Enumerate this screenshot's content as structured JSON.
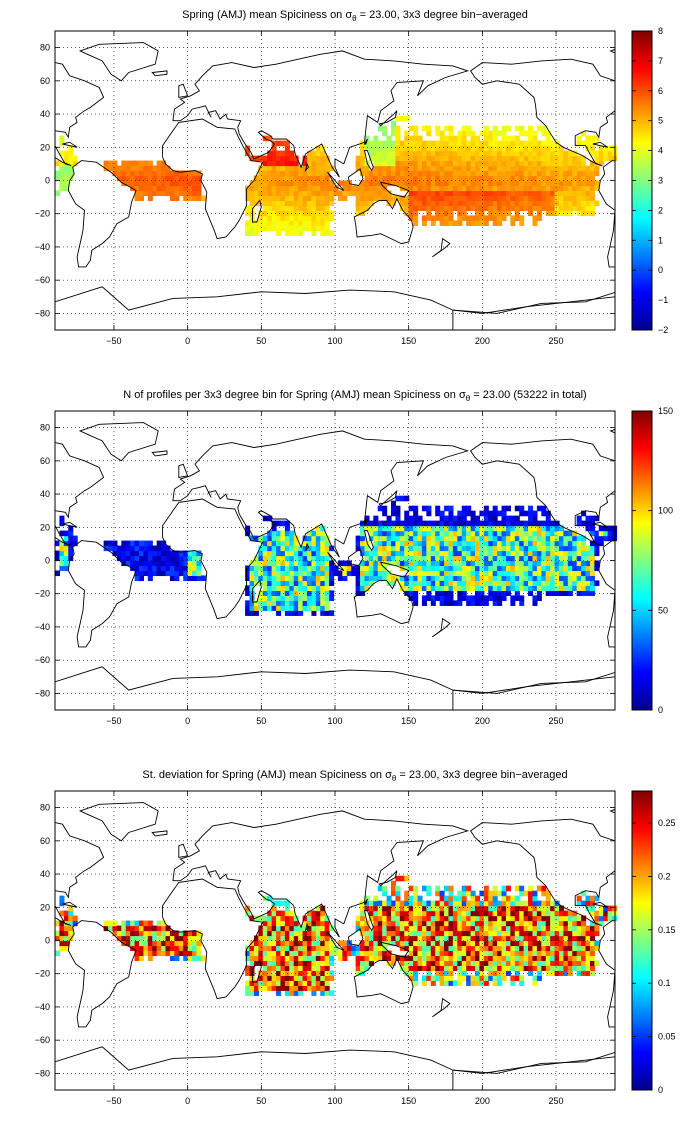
{
  "chart_data": [
    {
      "type": "heatmap",
      "title": "Spring (AMJ) mean Spiciness on σ",
      "title_sub": "θ",
      "title_tail": " = 23.00, 3x3 degree bin−averaged",
      "xticks": [
        "−50",
        "0",
        "50",
        "100",
        "150",
        "200",
        "250"
      ],
      "xtick_values": [
        -50,
        0,
        50,
        100,
        150,
        200,
        250
      ],
      "yticks": [
        "80",
        "60",
        "40",
        "20",
        "0",
        "−20",
        "−40",
        "−60",
        "−80"
      ],
      "ytick_values": [
        80,
        60,
        40,
        20,
        0,
        -20,
        -40,
        -60,
        -80
      ],
      "xlim": [
        -90,
        290
      ],
      "ylim": [
        -90,
        90
      ],
      "colorbar": {
        "ticks": [
          "8",
          "7",
          "6",
          "5",
          "4",
          "3",
          "2",
          "1",
          "0",
          "−1",
          "−2"
        ],
        "tick_values": [
          8,
          7,
          6,
          5,
          4,
          3,
          2,
          1,
          0,
          -1,
          -2
        ],
        "range": [
          -2,
          8
        ]
      },
      "field": "mean",
      "grid": "dotted"
    },
    {
      "type": "heatmap",
      "title": "N of profiles per 3x3 degree bin for Spring (AMJ) mean Spiciness on σ",
      "title_sub": "θ",
      "title_tail": " = 23.00 (53222 in total)",
      "xticks": [
        "−50",
        "0",
        "50",
        "100",
        "150",
        "200",
        "250"
      ],
      "xtick_values": [
        -50,
        0,
        50,
        100,
        150,
        200,
        250
      ],
      "yticks": [
        "80",
        "60",
        "40",
        "20",
        "0",
        "−20",
        "−40",
        "−60",
        "−80"
      ],
      "ytick_values": [
        80,
        60,
        40,
        20,
        0,
        -20,
        -40,
        -60,
        -80
      ],
      "xlim": [
        -90,
        290
      ],
      "ylim": [
        -90,
        90
      ],
      "colorbar": {
        "ticks": [
          "150",
          "100",
          "50",
          "0"
        ],
        "tick_values": [
          150,
          100,
          50,
          0
        ],
        "range": [
          0,
          150
        ]
      },
      "field": "count",
      "grid": "dotted"
    },
    {
      "type": "heatmap",
      "title": "St. deviation for Spring (AMJ) mean Spiciness on σ",
      "title_sub": "θ",
      "title_tail": " = 23.00, 3x3 degree bin−averaged",
      "xticks": [
        "−50",
        "0",
        "50",
        "100",
        "150",
        "200",
        "250"
      ],
      "xtick_values": [
        -50,
        0,
        50,
        100,
        150,
        200,
        250
      ],
      "yticks": [
        "80",
        "60",
        "40",
        "20",
        "0",
        "−20",
        "−40",
        "−60",
        "−80"
      ],
      "ytick_values": [
        80,
        60,
        40,
        20,
        0,
        -20,
        -40,
        -60,
        -80
      ],
      "xlim": [
        -90,
        290
      ],
      "ylim": [
        -90,
        90
      ],
      "colorbar": {
        "ticks": [
          "0.25",
          "0.2",
          "0.15",
          "0.1",
          "0.05",
          "0"
        ],
        "tick_values": [
          0.25,
          0.2,
          0.15,
          0.1,
          0.05,
          0
        ],
        "range": [
          0,
          0.28
        ]
      },
      "field": "std",
      "grid": "dotted"
    }
  ]
}
